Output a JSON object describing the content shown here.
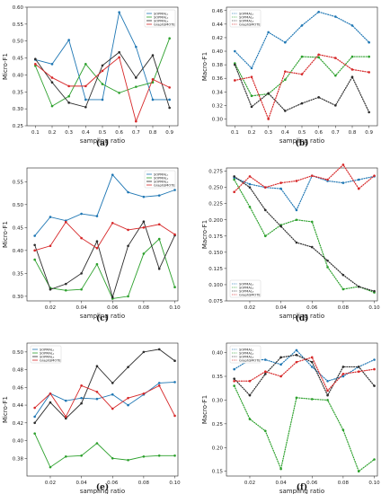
{
  "colors": {
    "s1": "#1f77b4",
    "s2": "#2ca02c",
    "s3": "#2b2b2b",
    "s4": "#d62728"
  },
  "chart_data": [
    {
      "id": "a",
      "caption": "(a)",
      "type": "line",
      "style": "solid",
      "xlabel": "sampling ratio",
      "ylabel": "Micro-F1",
      "xlim": [
        0.05,
        0.95
      ],
      "ylim": [
        0.25,
        0.6
      ],
      "xticks": [
        0.1,
        0.2,
        0.3,
        0.4,
        0.5,
        0.6,
        0.7,
        0.8,
        0.9
      ],
      "xtick_labels": [
        "0.1",
        "0.2",
        "0.3",
        "0.4",
        "0.5",
        "0.6",
        "0.7",
        "0.8",
        "0.9"
      ],
      "yticks": [
        0.25,
        0.3,
        0.35,
        0.4,
        0.45,
        0.5,
        0.55,
        0.6
      ],
      "ytick_labels": [
        "0.25",
        "0.30",
        "0.35",
        "0.40",
        "0.45",
        "0.50",
        "0.55",
        "0.60"
      ],
      "legend_loc": "top-right",
      "x": [
        0.1,
        0.2,
        0.3,
        0.4,
        0.5,
        0.6,
        0.7,
        0.8,
        0.9
      ],
      "series": [
        {
          "name": "SOPMAL₁",
          "color": "s1",
          "values": [
            0.445,
            0.432,
            0.503,
            0.327,
            0.327,
            0.585,
            0.483,
            0.327,
            0.327
          ]
        },
        {
          "name": "SOPMAL₂",
          "color": "s2",
          "values": [
            0.427,
            0.308,
            0.337,
            0.432,
            0.373,
            0.347,
            0.365,
            0.378,
            0.508
          ]
        },
        {
          "name": "SOPMAL₃",
          "color": "s3",
          "values": [
            0.447,
            0.378,
            0.318,
            0.305,
            0.428,
            0.467,
            0.392,
            0.458,
            0.303
          ]
        },
        {
          "name": "GraphSMOTE",
          "color": "s4",
          "values": [
            0.432,
            0.392,
            0.367,
            0.367,
            0.412,
            0.452,
            0.263,
            0.387,
            0.363
          ]
        }
      ]
    },
    {
      "id": "b",
      "caption": "(b)",
      "type": "line",
      "style": "dotted",
      "xlabel": "sampling ratio",
      "ylabel": "Macro-F1",
      "xlim": [
        0.05,
        0.95
      ],
      "ylim": [
        0.29,
        0.465
      ],
      "xticks": [
        0.1,
        0.2,
        0.3,
        0.4,
        0.5,
        0.6,
        0.7,
        0.8,
        0.9
      ],
      "xtick_labels": [
        "0.1",
        "0.2",
        "0.3",
        "0.4",
        "0.5",
        "0.6",
        "0.7",
        "0.8",
        "0.9"
      ],
      "yticks": [
        0.3,
        0.32,
        0.34,
        0.36,
        0.38,
        0.4,
        0.42,
        0.44,
        0.46
      ],
      "ytick_labels": [
        "0.30",
        "0.32",
        "0.34",
        "0.36",
        "0.38",
        "0.40",
        "0.42",
        "0.44",
        "0.46"
      ],
      "legend_loc": "top-left",
      "x": [
        0.1,
        0.2,
        0.3,
        0.4,
        0.5,
        0.6,
        0.7,
        0.8,
        0.9
      ],
      "series": [
        {
          "name": "SOPMAL₁",
          "color": "s1",
          "values": [
            0.4,
            0.375,
            0.428,
            0.413,
            0.438,
            0.458,
            0.451,
            0.438,
            0.413
          ]
        },
        {
          "name": "SOPMAL₂",
          "color": "s2",
          "values": [
            0.382,
            0.334,
            0.337,
            0.358,
            0.392,
            0.391,
            0.364,
            0.392,
            0.392
          ]
        },
        {
          "name": "SOPMAL₃",
          "color": "s3",
          "values": [
            0.38,
            0.318,
            0.338,
            0.312,
            0.323,
            0.332,
            0.32,
            0.362,
            0.31
          ]
        },
        {
          "name": "GraphSMOTE",
          "color": "s4",
          "values": [
            0.357,
            0.362,
            0.3,
            0.37,
            0.366,
            0.395,
            0.39,
            0.373,
            0.369
          ]
        }
      ]
    },
    {
      "id": "c",
      "caption": "(c)",
      "type": "line",
      "style": "solid",
      "xlabel": "sampling ratio",
      "ylabel": "Micro-F1",
      "xlim": [
        0.005,
        0.102
      ],
      "ylim": [
        0.29,
        0.58
      ],
      "xticks": [
        0.02,
        0.04,
        0.06,
        0.08,
        0.1
      ],
      "xtick_labels": [
        "0.02",
        "0.04",
        "0.06",
        "0.08",
        "0.10"
      ],
      "yticks": [
        0.3,
        0.35,
        0.4,
        0.45,
        0.5,
        0.55
      ],
      "ytick_labels": [
        "0.30",
        "0.35",
        "0.40",
        "0.45",
        "0.50",
        "0.55"
      ],
      "legend_loc": "top-right",
      "x": [
        0.01,
        0.02,
        0.03,
        0.04,
        0.05,
        0.06,
        0.07,
        0.08,
        0.09,
        0.1
      ],
      "series": [
        {
          "name": "SOPMAL₁",
          "color": "s1",
          "values": [
            0.432,
            0.473,
            0.465,
            0.48,
            0.475,
            0.565,
            0.527,
            0.517,
            0.52,
            0.532
          ]
        },
        {
          "name": "SOPMAL₂",
          "color": "s2",
          "values": [
            0.38,
            0.318,
            0.313,
            0.315,
            0.37,
            0.295,
            0.3,
            0.393,
            0.425,
            0.32
          ]
        },
        {
          "name": "SOPMAL₃",
          "color": "s3",
          "values": [
            0.412,
            0.315,
            0.327,
            0.35,
            0.42,
            0.298,
            0.41,
            0.463,
            0.36,
            0.433
          ]
        },
        {
          "name": "GraphSMOTE",
          "color": "s4",
          "values": [
            0.4,
            0.41,
            0.462,
            0.427,
            0.405,
            0.46,
            0.445,
            0.45,
            0.457,
            0.435
          ]
        }
      ]
    },
    {
      "id": "d",
      "caption": "(d)",
      "type": "line",
      "style": "dotted",
      "xlabel": "sampling ratio",
      "ylabel": "Macro-F1",
      "xlim": [
        0.005,
        0.102
      ],
      "ylim": [
        0.075,
        0.28
      ],
      "xticks": [
        0.02,
        0.04,
        0.06,
        0.08,
        0.1
      ],
      "xtick_labels": [
        "0.02",
        "0.04",
        "0.06",
        "0.08",
        "0.10"
      ],
      "yticks": [
        0.075,
        0.1,
        0.125,
        0.15,
        0.175,
        0.2,
        0.225,
        0.25,
        0.275
      ],
      "ytick_labels": [
        "0.075",
        "0.100",
        "0.125",
        "0.150",
        "0.175",
        "0.200",
        "0.225",
        "0.250",
        "0.275"
      ],
      "legend_loc": "bottom-left",
      "x": [
        0.01,
        0.02,
        0.03,
        0.04,
        0.05,
        0.06,
        0.07,
        0.08,
        0.09,
        0.1
      ],
      "series": [
        {
          "name": "SOPMAL₁",
          "color": "s1",
          "values": [
            0.265,
            0.255,
            0.25,
            0.248,
            0.215,
            0.268,
            0.26,
            0.257,
            0.262,
            0.267
          ]
        },
        {
          "name": "SOPMAL₂",
          "color": "s2",
          "values": [
            0.262,
            0.22,
            0.175,
            0.192,
            0.2,
            0.197,
            0.127,
            0.093,
            0.097,
            0.088
          ]
        },
        {
          "name": "SOPMAL₃",
          "color": "s3",
          "values": [
            0.267,
            0.25,
            0.215,
            0.19,
            0.165,
            0.158,
            0.137,
            0.115,
            0.097,
            0.09
          ]
        },
        {
          "name": "GraphSMOTE",
          "color": "s4",
          "values": [
            0.243,
            0.267,
            0.25,
            0.257,
            0.26,
            0.268,
            0.262,
            0.285,
            0.248,
            0.268
          ]
        }
      ]
    },
    {
      "id": "e",
      "caption": "(e)",
      "type": "line",
      "style": "solid",
      "xlabel": "sampling ratio",
      "ylabel": "Micro-F1",
      "xlim": [
        0.005,
        0.102
      ],
      "ylim": [
        0.36,
        0.51
      ],
      "xticks": [
        0.02,
        0.04,
        0.06,
        0.08,
        0.1
      ],
      "xtick_labels": [
        "0.02",
        "0.04",
        "0.06",
        "0.08",
        "0.10"
      ],
      "yticks": [
        0.38,
        0.4,
        0.42,
        0.44,
        0.46,
        0.48,
        0.5
      ],
      "ytick_labels": [
        "0.38",
        "0.40",
        "0.42",
        "0.44",
        "0.46",
        "0.48",
        "0.50"
      ],
      "legend_loc": "top-left",
      "x": [
        0.01,
        0.02,
        0.03,
        0.04,
        0.05,
        0.06,
        0.07,
        0.08,
        0.09,
        0.1
      ],
      "series": [
        {
          "name": "SOPMAL₁",
          "color": "s1",
          "values": [
            0.427,
            0.453,
            0.445,
            0.448,
            0.447,
            0.452,
            0.44,
            0.452,
            0.465,
            0.466
          ]
        },
        {
          "name": "SOPMAL₂",
          "color": "s2",
          "values": [
            0.408,
            0.37,
            0.382,
            0.383,
            0.397,
            0.38,
            0.378,
            0.382,
            0.383,
            0.383
          ]
        },
        {
          "name": "SOPMAL₃",
          "color": "s3",
          "values": [
            0.42,
            0.443,
            0.425,
            0.442,
            0.484,
            0.465,
            0.483,
            0.5,
            0.503,
            0.49
          ]
        },
        {
          "name": "GraphSMOTE",
          "color": "s4",
          "values": [
            0.437,
            0.453,
            0.427,
            0.462,
            0.455,
            0.436,
            0.448,
            0.453,
            0.462,
            0.428
          ]
        }
      ]
    },
    {
      "id": "f",
      "caption": "(f)",
      "type": "line",
      "style": "dotted",
      "xlabel": "sampling ratio",
      "ylabel": "Macro-F1",
      "xlim": [
        0.005,
        0.102
      ],
      "ylim": [
        0.14,
        0.42
      ],
      "xticks": [
        0.02,
        0.04,
        0.06,
        0.08,
        0.1
      ],
      "xtick_labels": [
        "0.02",
        "0.04",
        "0.06",
        "0.08",
        "0.10"
      ],
      "yticks": [
        0.15,
        0.2,
        0.25,
        0.3,
        0.35,
        0.4
      ],
      "ytick_labels": [
        "0.15",
        "0.20",
        "0.25",
        "0.30",
        "0.35",
        "0.40"
      ],
      "legend_loc": "top-left",
      "x": [
        0.01,
        0.02,
        0.03,
        0.04,
        0.05,
        0.06,
        0.07,
        0.08,
        0.09,
        0.1
      ],
      "series": [
        {
          "name": "SOPMAL₁",
          "color": "s1",
          "values": [
            0.365,
            0.385,
            0.385,
            0.375,
            0.405,
            0.37,
            0.34,
            0.35,
            0.37,
            0.385
          ]
        },
        {
          "name": "SOPMAL₂",
          "color": "s2",
          "values": [
            0.33,
            0.26,
            0.235,
            0.155,
            0.305,
            0.302,
            0.3,
            0.237,
            0.15,
            0.175
          ]
        },
        {
          "name": "SOPMAL₃",
          "color": "s3",
          "values": [
            0.345,
            0.31,
            0.355,
            0.39,
            0.395,
            0.38,
            0.31,
            0.37,
            0.37,
            0.33
          ]
        },
        {
          "name": "GraphSMOTE",
          "color": "s4",
          "values": [
            0.34,
            0.34,
            0.36,
            0.35,
            0.38,
            0.39,
            0.32,
            0.355,
            0.36,
            0.365
          ]
        }
      ]
    }
  ]
}
